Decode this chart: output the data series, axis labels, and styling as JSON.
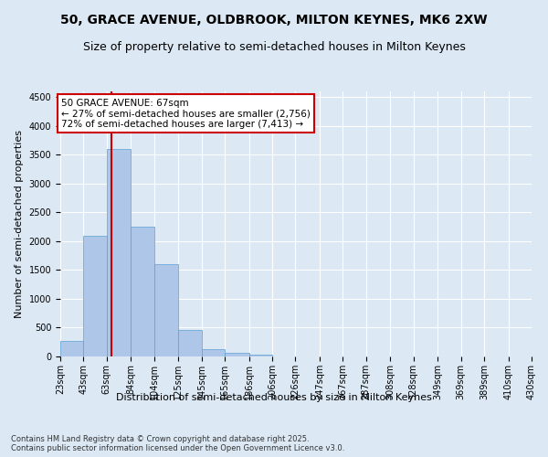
{
  "title": "50, GRACE AVENUE, OLDBROOK, MILTON KEYNES, MK6 2XW",
  "subtitle": "Size of property relative to semi-detached houses in Milton Keynes",
  "xlabel": "Distribution of semi-detached houses by size in Milton Keynes",
  "ylabel": "Number of semi-detached properties",
  "footnote": "Contains HM Land Registry data © Crown copyright and database right 2025.\nContains public sector information licensed under the Open Government Licence v3.0.",
  "annotation_title": "50 GRACE AVENUE: 67sqm",
  "annotation_line1": "← 27% of semi-detached houses are smaller (2,756)",
  "annotation_line2": "72% of semi-detached houses are larger (7,413) →",
  "property_size": 67,
  "bin_edges": [
    23,
    43,
    63,
    84,
    104,
    125,
    145,
    165,
    186,
    206,
    226,
    247,
    267,
    287,
    308,
    328,
    349,
    369,
    389,
    410,
    430
  ],
  "bin_labels": [
    "23sqm",
    "43sqm",
    "63sqm",
    "84sqm",
    "104sqm",
    "125sqm",
    "145sqm",
    "165sqm",
    "186sqm",
    "206sqm",
    "226sqm",
    "247sqm",
    "267sqm",
    "287sqm",
    "308sqm",
    "328sqm",
    "349sqm",
    "369sqm",
    "389sqm",
    "410sqm",
    "430sqm"
  ],
  "bar_heights": [
    270,
    2100,
    3600,
    2250,
    1600,
    460,
    130,
    60,
    30,
    0,
    0,
    0,
    0,
    0,
    0,
    0,
    0,
    0,
    0,
    0
  ],
  "bar_color": "#aec6e8",
  "bar_edge_color": "#5a9fd4",
  "vline_color": "#cc0000",
  "vline_x": 67,
  "ylim": [
    0,
    4600
  ],
  "yticks": [
    0,
    500,
    1000,
    1500,
    2000,
    2500,
    3000,
    3500,
    4000,
    4500
  ],
  "background_color": "#dce9f5",
  "plot_background": "#dce9f5",
  "grid_color": "#ffffff",
  "annotation_box_color": "#ffffff",
  "annotation_box_edge": "#cc0000",
  "title_fontsize": 10,
  "subtitle_fontsize": 9,
  "label_fontsize": 8,
  "tick_fontsize": 7,
  "annotation_fontsize": 7.5,
  "footnote_fontsize": 6
}
